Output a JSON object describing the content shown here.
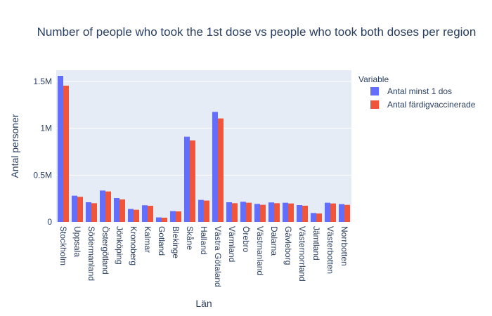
{
  "chart_data": {
    "type": "bar",
    "title": "Number of people who took the 1st dose vs people who took both doses per region",
    "xlabel": "Län",
    "ylabel": "Antal personer",
    "ylim": [
      0,
      1620000
    ],
    "yticks": [
      {
        "value": 0,
        "label": "0"
      },
      {
        "value": 500000,
        "label": "0.5M"
      },
      {
        "value": 1000000,
        "label": "1M"
      },
      {
        "value": 1500000,
        "label": "1.5M"
      }
    ],
    "grid": true,
    "legend": {
      "title": "Variable",
      "position": "top-right"
    },
    "categories": [
      "Stockholm",
      "Uppsala",
      "Södermanland",
      "Östergötland",
      "Jönköping",
      "Kronoberg",
      "Kalmar",
      "Gotland",
      "Blekinge",
      "Skåne",
      "Halland",
      "Västra Götaland",
      "Värmland",
      "Örebro",
      "Västmanland",
      "Dalarna",
      "Gävleborg",
      "Västernorrland",
      "Jämtland",
      "Västerbotten",
      "Norrbotten"
    ],
    "series": [
      {
        "name": "Antal minst 1 dos",
        "color": "#636efa",
        "values": [
          1560000,
          280000,
          210000,
          335000,
          255000,
          138000,
          178000,
          48000,
          115000,
          910000,
          235000,
          1175000,
          210000,
          215000,
          192000,
          208000,
          205000,
          180000,
          95000,
          205000,
          190000
        ]
      },
      {
        "name": "Antal färdigvaccinerade",
        "color": "#ef553b",
        "values": [
          1455000,
          268000,
          200000,
          325000,
          240000,
          130000,
          172000,
          45000,
          112000,
          870000,
          228000,
          1105000,
          200000,
          205000,
          183000,
          200000,
          197000,
          173000,
          90000,
          197000,
          182000
        ]
      }
    ]
  }
}
